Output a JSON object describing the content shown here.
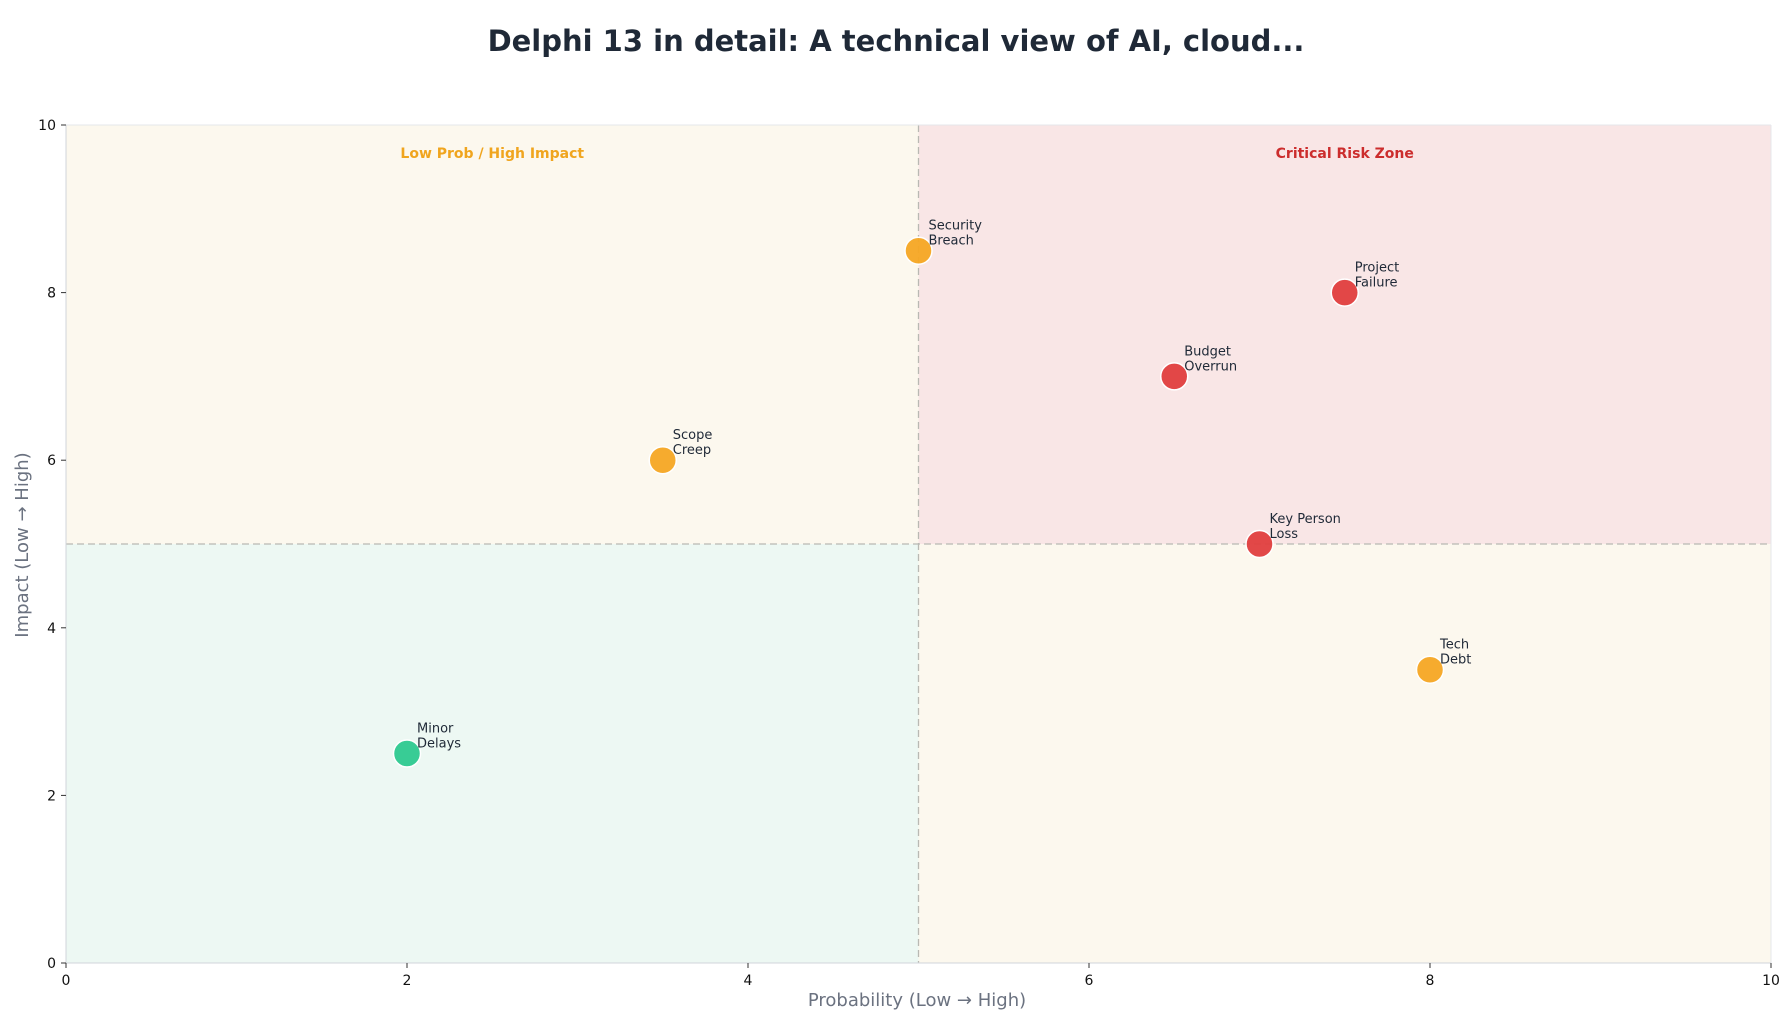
{
  "chart_data": {
    "type": "scatter",
    "title": "Delphi 13 in detail: A technical view of AI, cloud...",
    "xlabel": "Probability (Low → High)",
    "ylabel": "Impact (Low → High)",
    "xlim": [
      0,
      10
    ],
    "ylim": [
      0,
      10
    ],
    "xticks": [
      0,
      2,
      4,
      6,
      8,
      10
    ],
    "yticks": [
      0,
      2,
      4,
      6,
      8,
      10
    ],
    "thresholds": {
      "x": 5,
      "y": 5
    },
    "grid": false,
    "quadrants": [
      {
        "name": "low-prob-high-impact",
        "label": "Low Prob / High Impact",
        "x_range": [
          0,
          5
        ],
        "y_range": [
          5,
          10
        ],
        "fill": "#fcf8ee",
        "label_color": "#f0a51e"
      },
      {
        "name": "critical-risk-zone",
        "label": "Critical Risk Zone",
        "x_range": [
          5,
          10
        ],
        "y_range": [
          5,
          10
        ],
        "fill": "#f9e6e6",
        "label_color": "#cc2d2d"
      },
      {
        "name": "low-prob-low-impact",
        "label": "",
        "x_range": [
          0,
          5
        ],
        "y_range": [
          0,
          5
        ],
        "fill": "#edf8f3",
        "label_color": "#10b981"
      },
      {
        "name": "high-prob-low-impact",
        "label": "",
        "x_range": [
          5,
          10
        ],
        "y_range": [
          0,
          5
        ],
        "fill": "#fcf8ee",
        "label_color": "#f0a51e"
      }
    ],
    "points": [
      {
        "lines": [
          "Security",
          "Breach"
        ],
        "x": 5.0,
        "y": 8.5,
        "color": "#f5a623"
      },
      {
        "lines": [
          "Project",
          "Failure"
        ],
        "x": 7.5,
        "y": 8.0,
        "color": "#e03e3e"
      },
      {
        "lines": [
          "Budget",
          "Overrun"
        ],
        "x": 6.5,
        "y": 7.0,
        "color": "#e03e3e"
      },
      {
        "lines": [
          "Scope",
          "Creep"
        ],
        "x": 3.5,
        "y": 6.0,
        "color": "#f5a623"
      },
      {
        "lines": [
          "Key Person",
          "Loss"
        ],
        "x": 7.0,
        "y": 5.0,
        "color": "#e03e3e"
      },
      {
        "lines": [
          "Tech",
          "Debt"
        ],
        "x": 8.0,
        "y": 3.5,
        "color": "#f5a623"
      },
      {
        "lines": [
          "Minor",
          "Delays"
        ],
        "x": 2.0,
        "y": 2.5,
        "color": "#2ec98f"
      }
    ]
  }
}
